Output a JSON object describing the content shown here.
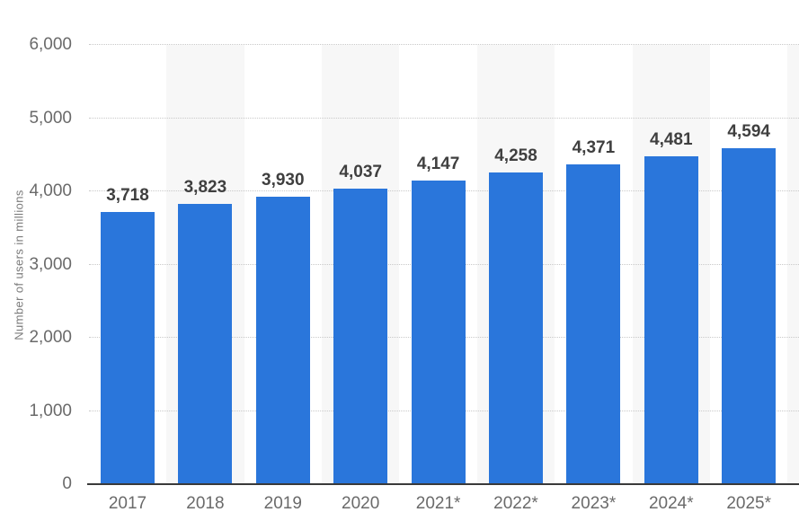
{
  "chart_data": {
    "type": "bar",
    "categories": [
      "2017",
      "2018",
      "2019",
      "2020",
      "2021*",
      "2022*",
      "2023*",
      "2024*",
      "2025*"
    ],
    "values": [
      3718,
      3823,
      3930,
      4037,
      4147,
      4258,
      4371,
      4481,
      4594
    ],
    "value_labels": [
      "3,718",
      "3,823",
      "3,930",
      "4,037",
      "4,147",
      "4,258",
      "4,371",
      "4,481",
      "4,594"
    ],
    "title": "",
    "xlabel": "",
    "ylabel": "Number of users in millions",
    "ylim": [
      0,
      6000
    ],
    "ytick_step": 1000,
    "ytick_labels": [
      "0",
      "1,000",
      "2,000",
      "3,000",
      "4,000",
      "5,000",
      "6,000"
    ],
    "grid": "horizontal-dotted",
    "legend_position": "none",
    "colors": {
      "bar": "#2a76db",
      "column_stripe": "#f7f7f7",
      "gridline": "#c9c9c9",
      "baseline": "#3a3a3a",
      "tick_text": "#6a6a6a",
      "value_text": "#3f3f3f",
      "axis_title_text": "#7a7a7a",
      "background": "#ffffff"
    }
  }
}
